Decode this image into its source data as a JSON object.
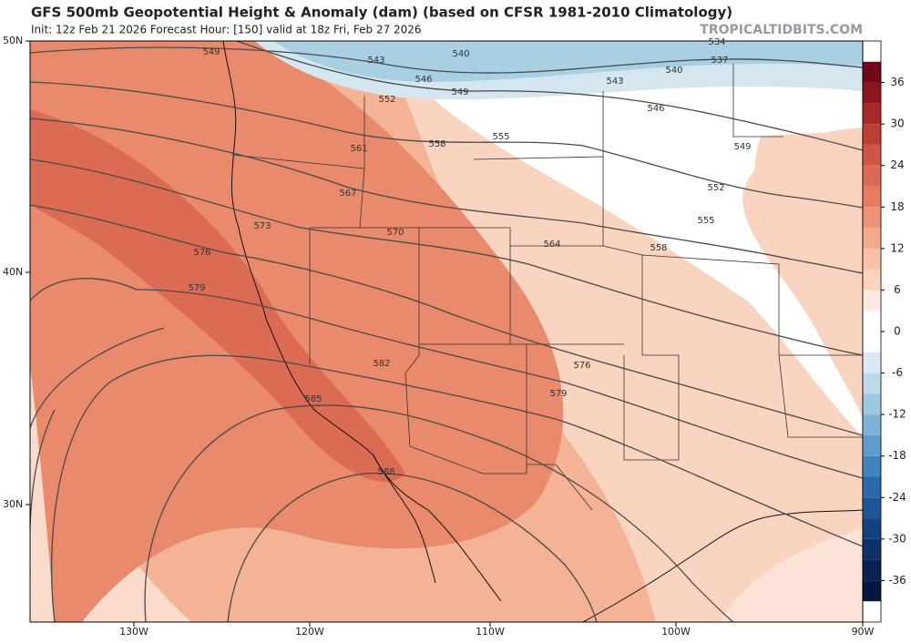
{
  "header": {
    "title": "GFS 500mb Geopotential Height & Anomaly (dam) (based on CFSR 1981-2010 Climatology)",
    "subtitle": "Init: 12z Feb 21 2026   Forecast Hour: [150]   valid at 18z Fri, Feb 27 2026",
    "site": "TROPICALTIDBITS.COM"
  },
  "map": {
    "latitude_labels": [
      "50N",
      "40N",
      "30N"
    ],
    "longitude_labels": [
      "130W",
      "120W",
      "110W",
      "100W",
      "90W"
    ],
    "contour_labels": [
      549,
      543,
      546,
      540,
      534,
      537,
      540,
      543,
      549,
      552,
      546,
      555,
      558,
      561,
      549,
      567,
      552,
      573,
      570,
      555,
      564,
      558,
      576,
      579,
      582,
      576,
      579,
      585,
      588
    ]
  },
  "colorbar": {
    "ticks": [
      36,
      30,
      24,
      18,
      12,
      6,
      0,
      -6,
      -12,
      -18,
      -24,
      -30,
      -36
    ]
  }
}
